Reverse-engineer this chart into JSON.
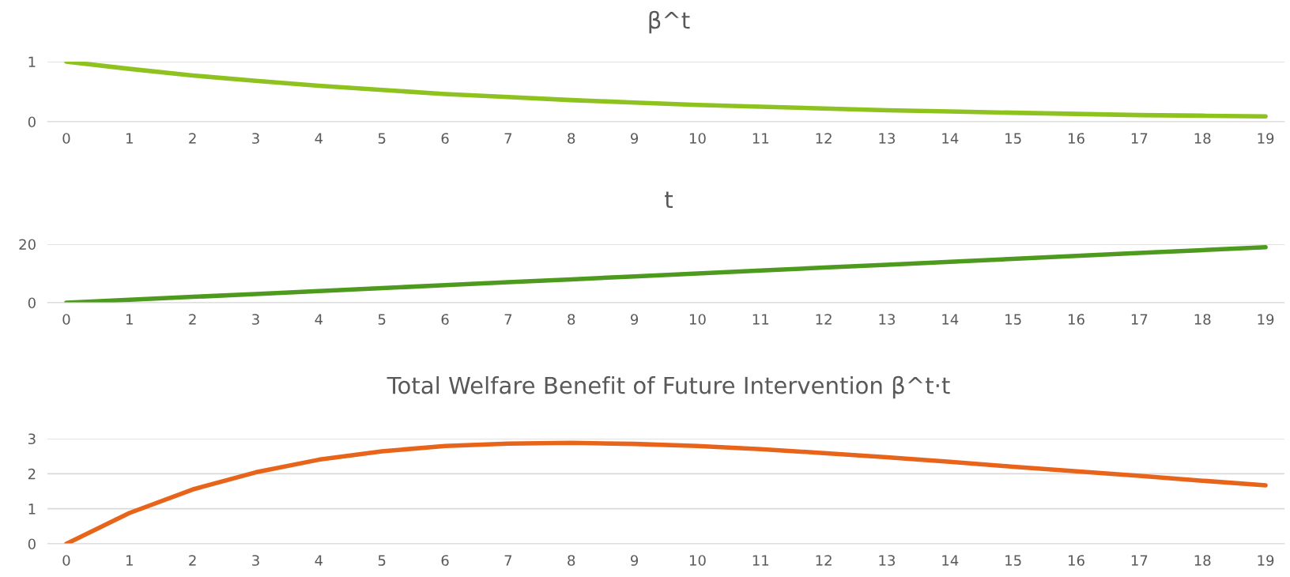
{
  "chart_data": [
    {
      "type": "line",
      "title": "β^t",
      "categories": [
        "0",
        "1",
        "2",
        "3",
        "4",
        "5",
        "6",
        "7",
        "8",
        "9",
        "10",
        "11",
        "12",
        "13",
        "14",
        "15",
        "16",
        "17",
        "18",
        "19"
      ],
      "series": [
        {
          "color": "#8dc21f",
          "values": [
            1,
            0.88,
            0.77,
            0.68,
            0.6,
            0.53,
            0.46,
            0.41,
            0.36,
            0.32,
            0.28,
            0.25,
            0.22,
            0.19,
            0.17,
            0.15,
            0.13,
            0.11,
            0.1,
            0.09
          ]
        }
      ],
      "ylim": [
        0,
        1
      ],
      "yticks": [
        0,
        1
      ],
      "grid": "y",
      "legend": false
    },
    {
      "type": "line",
      "title": "t",
      "categories": [
        "0",
        "1",
        "2",
        "3",
        "4",
        "5",
        "6",
        "7",
        "8",
        "9",
        "10",
        "11",
        "12",
        "13",
        "14",
        "15",
        "16",
        "17",
        "18",
        "19"
      ],
      "series": [
        {
          "color": "#4e9a1e",
          "values": [
            0,
            1,
            2,
            3,
            4,
            5,
            6,
            7,
            8,
            9,
            10,
            11,
            12,
            13,
            14,
            15,
            16,
            17,
            18,
            19
          ]
        }
      ],
      "ylim": [
        0,
        20
      ],
      "yticks": [
        0,
        20
      ],
      "grid": "y",
      "legend": false
    },
    {
      "type": "line",
      "title": "Total Welfare Benefit of Future Intervention β^t·t",
      "categories": [
        "0",
        "1",
        "2",
        "3",
        "4",
        "5",
        "6",
        "7",
        "8",
        "9",
        "10",
        "11",
        "12",
        "13",
        "14",
        "15",
        "16",
        "17",
        "18",
        "19"
      ],
      "series": [
        {
          "color": "#e8641b",
          "values": [
            0,
            0.88,
            1.55,
            2.04,
            2.4,
            2.64,
            2.79,
            2.86,
            2.88,
            2.85,
            2.79,
            2.7,
            2.59,
            2.47,
            2.34,
            2.2,
            2.07,
            1.94,
            1.8,
            1.67
          ]
        }
      ],
      "ylim": [
        0,
        3
      ],
      "yticks": [
        0,
        1,
        2,
        3
      ],
      "grid": "y",
      "legend": false
    }
  ]
}
